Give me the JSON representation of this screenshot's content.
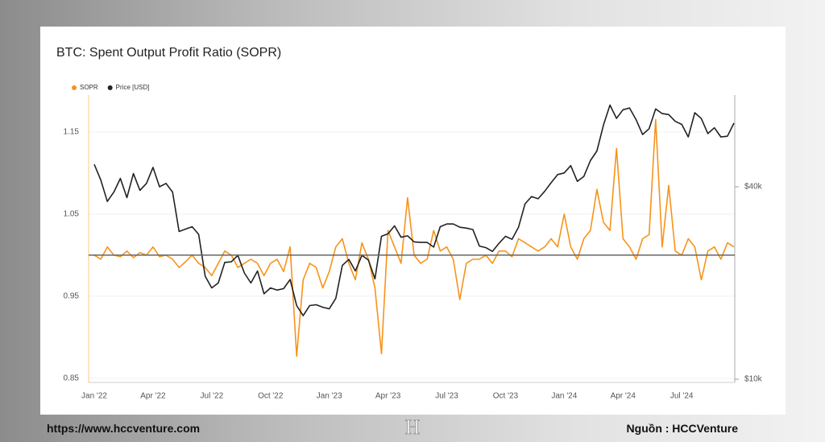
{
  "chart_data": {
    "type": "line",
    "title": "BTC: Spent Output Profit Ratio (SOPR)",
    "categories": [
      "Jan '22",
      null,
      null,
      null,
      null,
      null,
      null,
      null,
      null,
      "Apr '22",
      null,
      null,
      null,
      null,
      null,
      null,
      null,
      null,
      "Jul '22",
      null,
      null,
      null,
      null,
      null,
      null,
      null,
      null,
      "Oct '22",
      null,
      null,
      null,
      null,
      null,
      null,
      null,
      null,
      "Jan '23",
      null,
      null,
      null,
      null,
      null,
      null,
      null,
      null,
      "Apr '23",
      null,
      null,
      null,
      null,
      null,
      null,
      null,
      null,
      "Jul '23",
      null,
      null,
      null,
      null,
      null,
      null,
      null,
      null,
      "Oct '23",
      null,
      null,
      null,
      null,
      null,
      null,
      null,
      null,
      "Jan '24",
      null,
      null,
      null,
      null,
      null,
      null,
      null,
      null,
      "Apr '24",
      null,
      null,
      null,
      null,
      null,
      null,
      null,
      null,
      "Jul '24",
      null,
      null,
      null,
      null,
      null,
      null,
      null,
      null
    ],
    "series": [
      {
        "name": "SOPR",
        "color": "#f7931a",
        "axis": "y",
        "values": [
          1.0,
          0.995,
          1.01,
          1.0,
          0.998,
          1.005,
          0.997,
          1.003,
          1.0,
          1.01,
          0.998,
          1.0,
          0.995,
          0.985,
          0.992,
          1.0,
          0.99,
          0.985,
          0.975,
          0.99,
          1.005,
          1.0,
          0.985,
          0.99,
          0.995,
          0.99,
          0.975,
          0.99,
          0.995,
          0.98,
          1.01,
          0.877,
          0.97,
          0.99,
          0.985,
          0.96,
          0.98,
          1.01,
          1.02,
          0.99,
          0.97,
          1.015,
          0.995,
          0.96,
          0.88,
          1.03,
          1.01,
          0.99,
          1.07,
          1.0,
          0.99,
          0.995,
          1.03,
          1.005,
          1.01,
          0.995,
          0.946,
          0.99,
          0.995,
          0.995,
          1.0,
          0.99,
          1.005,
          1.005,
          0.998,
          1.02,
          1.015,
          1.01,
          1.005,
          1.01,
          1.02,
          1.01,
          1.05,
          1.01,
          0.995,
          1.02,
          1.03,
          1.08,
          1.04,
          1.03,
          1.13,
          1.02,
          1.01,
          0.995,
          1.02,
          1.025,
          1.165,
          1.01,
          1.085,
          1.005,
          1.0,
          1.02,
          1.01,
          0.97,
          1.005,
          1.01,
          0.995,
          1.015,
          1.01
        ]
      },
      {
        "name": "Price [USD]",
        "color": "#222222",
        "axis": "y2",
        "values": [
          47000,
          42000,
          36000,
          38500,
          42500,
          37000,
          44000,
          39000,
          41000,
          46000,
          40000,
          41000,
          38500,
          29000,
          29500,
          30000,
          28400,
          21000,
          19300,
          20000,
          23200,
          23300,
          24400,
          21500,
          20000,
          21800,
          18500,
          19300,
          19000,
          19200,
          20500,
          17000,
          15800,
          17000,
          17100,
          16800,
          16600,
          17900,
          22700,
          23700,
          21800,
          24400,
          23600,
          20600,
          28000,
          28500,
          30200,
          27800,
          28100,
          26900,
          26800,
          26800,
          25900,
          30000,
          30600,
          30600,
          29900,
          29700,
          29400,
          26100,
          25800,
          25100,
          26600,
          28000,
          27400,
          29900,
          35400,
          37300,
          36700,
          38700,
          41200,
          43700,
          44200,
          46600,
          41600,
          43100,
          48300,
          51800,
          62400,
          72100,
          65500,
          69700,
          70600,
          64900,
          58300,
          60800,
          70100,
          67800,
          67300,
          64100,
          62700,
          57300,
          68200,
          65400,
          58700,
          61200,
          57300,
          57600,
          63300
        ]
      }
    ],
    "ylim": [
      0.845,
      1.195
    ],
    "yticks": [
      0.85,
      0.95,
      1.05,
      1.15
    ],
    "y2lim": [
      9770,
      77500
    ],
    "y2scale": "log",
    "y2ticks": [
      {
        "value": 40000,
        "label": "$40k"
      },
      {
        "value": 10000,
        "label": "$10k"
      }
    ],
    "reference_line": 1,
    "grid": true,
    "legend": "top-left"
  },
  "footer": {
    "url": "https://www.hccventure.com",
    "source": "Nguồn : HCCVenture"
  }
}
